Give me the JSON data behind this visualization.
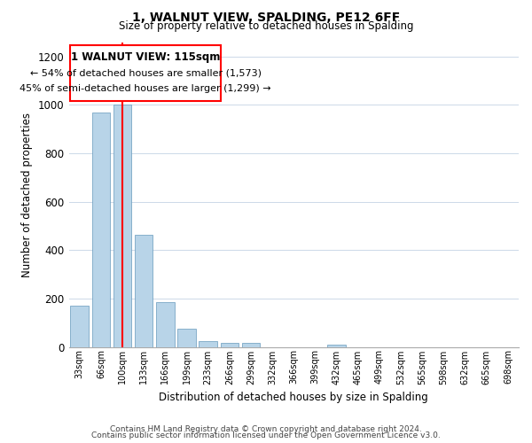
{
  "title": "1, WALNUT VIEW, SPALDING, PE12 6FF",
  "subtitle": "Size of property relative to detached houses in Spalding",
  "xlabel": "Distribution of detached houses by size in Spalding",
  "ylabel": "Number of detached properties",
  "bar_labels": [
    "33sqm",
    "66sqm",
    "100sqm",
    "133sqm",
    "166sqm",
    "199sqm",
    "233sqm",
    "266sqm",
    "299sqm",
    "332sqm",
    "366sqm",
    "399sqm",
    "432sqm",
    "465sqm",
    "499sqm",
    "532sqm",
    "565sqm",
    "598sqm",
    "632sqm",
    "665sqm",
    "698sqm"
  ],
  "bar_values": [
    170,
    970,
    1000,
    465,
    185,
    75,
    25,
    15,
    15,
    0,
    0,
    0,
    10,
    0,
    0,
    0,
    0,
    0,
    0,
    0,
    0
  ],
  "bar_color": "#b8d4e8",
  "bar_edge_color": "#6699bb",
  "redline_label": "1 WALNUT VIEW: 115sqm",
  "annotation_line1": "← 54% of detached houses are smaller (1,573)",
  "annotation_line2": "45% of semi-detached houses are larger (1,299) →",
  "ylim": [
    0,
    1260
  ],
  "yticks": [
    0,
    200,
    400,
    600,
    800,
    1000,
    1200
  ],
  "footer_line1": "Contains HM Land Registry data © Crown copyright and database right 2024.",
  "footer_line2": "Contains public sector information licensed under the Open Government Licence v3.0.",
  "background_color": "#ffffff",
  "grid_color": "#ccd9e8"
}
